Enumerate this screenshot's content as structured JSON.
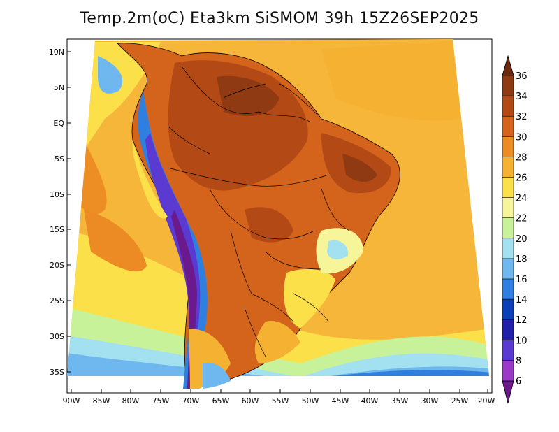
{
  "title": "Temp.2m(oC) Eta3km SiSMOM 39h 15Z26SEP2025",
  "lat_labels": [
    "10N",
    "5N",
    "EQ",
    "5S",
    "10S",
    "15S",
    "20S",
    "25S",
    "30S",
    "35S"
  ],
  "lon_labels": [
    "90W",
    "85W",
    "80W",
    "75W",
    "70W",
    "65W",
    "60W",
    "55W",
    "50W",
    "45W",
    "40W",
    "35W",
    "30W",
    "25W",
    "20W"
  ],
  "colorbar": {
    "labels": [
      "36",
      "34",
      "32",
      "30",
      "28",
      "26",
      "24",
      "22",
      "20",
      "18",
      "16",
      "14",
      "12",
      "10",
      "8",
      "6"
    ],
    "colors": [
      "#6b2a0e",
      "#8f3a12",
      "#b34a16",
      "#d4641b",
      "#ec8a23",
      "#f5b232",
      "#fbe04a",
      "#f7f59a",
      "#c8f29a",
      "#a3e0f0",
      "#6fb8ef",
      "#2f7fe0",
      "#0b3fb8",
      "#2020a8",
      "#5a3ad0",
      "#9b39c9",
      "#6a1a8c"
    ]
  }
}
